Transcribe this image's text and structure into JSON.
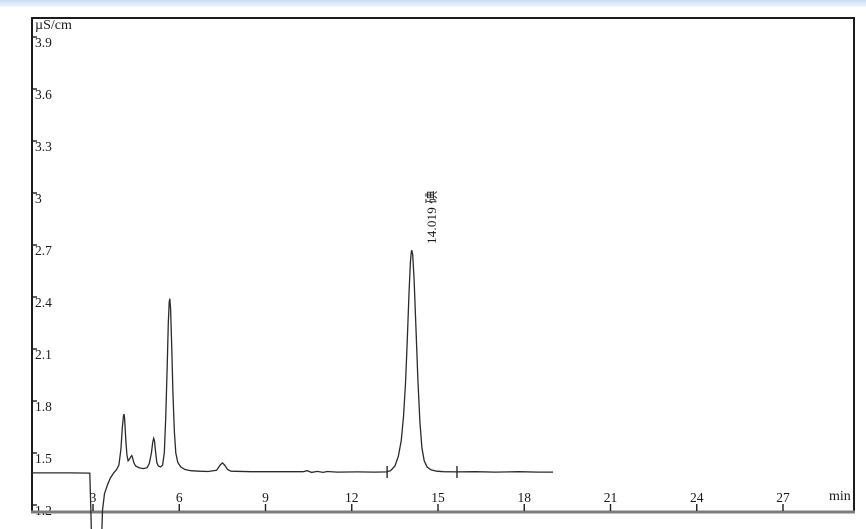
{
  "window": {
    "top_strip_color": "#cbdcf2"
  },
  "chart_data": {
    "type": "line",
    "title": "",
    "y_axis": {
      "unit_label": "µS/cm",
      "ticks": [
        "3.9",
        "3.6",
        "3.3",
        "3",
        "2.7",
        "2.4",
        "2.1",
        "1.8",
        "1.5",
        "1.2"
      ],
      "range": [
        1.16,
        4.03
      ],
      "grid": false
    },
    "x_axis": {
      "unit_label": "min",
      "ticks": [
        "3",
        "6",
        "9",
        "12",
        "15",
        "18",
        "21",
        "24",
        "27"
      ],
      "range": [
        0.84,
        29.6
      ],
      "grid": false
    },
    "trace_color": "#2b2b2b",
    "axis_color": "#7d7d7d",
    "legend": "none",
    "peaks": [
      {
        "rt_label": "14.019",
        "compound": "碘",
        "apex_t": 14.09,
        "apex_v": 2.67,
        "start_marker_t": 13.23,
        "end_marker_t": 15.66
      }
    ],
    "series": [
      {
        "name": "conductivity-trace",
        "points": [
          [
            0.84,
            1.385
          ],
          [
            1.5,
            1.385
          ],
          [
            2.2,
            1.385
          ],
          [
            2.89,
            1.384
          ],
          [
            2.92,
            1.2
          ],
          [
            2.95,
            1.0
          ],
          [
            3.3,
            1.0
          ],
          [
            3.33,
            1.17
          ],
          [
            3.4,
            1.265
          ],
          [
            3.5,
            1.315
          ],
          [
            3.6,
            1.355
          ],
          [
            3.72,
            1.385
          ],
          [
            3.82,
            1.405
          ],
          [
            3.9,
            1.43
          ],
          [
            3.97,
            1.52
          ],
          [
            4.02,
            1.645
          ],
          [
            4.06,
            1.715
          ],
          [
            4.08,
            1.725
          ],
          [
            4.1,
            1.7
          ],
          [
            4.14,
            1.575
          ],
          [
            4.18,
            1.49
          ],
          [
            4.22,
            1.455
          ],
          [
            4.27,
            1.465
          ],
          [
            4.32,
            1.48
          ],
          [
            4.35,
            1.485
          ],
          [
            4.38,
            1.47
          ],
          [
            4.42,
            1.445
          ],
          [
            4.48,
            1.425
          ],
          [
            4.6,
            1.415
          ],
          [
            4.75,
            1.41
          ],
          [
            4.88,
            1.415
          ],
          [
            4.96,
            1.44
          ],
          [
            5.03,
            1.5
          ],
          [
            5.08,
            1.565
          ],
          [
            5.11,
            1.585
          ],
          [
            5.14,
            1.57
          ],
          [
            5.18,
            1.5
          ],
          [
            5.22,
            1.445
          ],
          [
            5.27,
            1.425
          ],
          [
            5.35,
            1.42
          ],
          [
            5.42,
            1.43
          ],
          [
            5.48,
            1.5
          ],
          [
            5.53,
            1.7
          ],
          [
            5.58,
            2.0
          ],
          [
            5.62,
            2.25
          ],
          [
            5.65,
            2.37
          ],
          [
            5.67,
            2.39
          ],
          [
            5.7,
            2.33
          ],
          [
            5.74,
            2.1
          ],
          [
            5.78,
            1.85
          ],
          [
            5.83,
            1.62
          ],
          [
            5.88,
            1.5
          ],
          [
            5.95,
            1.445
          ],
          [
            6.05,
            1.42
          ],
          [
            6.2,
            1.405
          ],
          [
            6.4,
            1.398
          ],
          [
            6.7,
            1.395
          ],
          [
            7.0,
            1.393
          ],
          [
            7.3,
            1.4
          ],
          [
            7.42,
            1.43
          ],
          [
            7.5,
            1.443
          ],
          [
            7.58,
            1.43
          ],
          [
            7.68,
            1.405
          ],
          [
            7.8,
            1.395
          ],
          [
            8.5,
            1.392
          ],
          [
            9.5,
            1.392
          ],
          [
            10.3,
            1.392
          ],
          [
            10.45,
            1.398
          ],
          [
            10.6,
            1.388
          ],
          [
            10.8,
            1.394
          ],
          [
            11.0,
            1.388
          ],
          [
            11.15,
            1.393
          ],
          [
            11.5,
            1.39
          ],
          [
            12.2,
            1.391
          ],
          [
            12.8,
            1.39
          ],
          [
            13.2,
            1.391
          ],
          [
            13.35,
            1.398
          ],
          [
            13.5,
            1.425
          ],
          [
            13.62,
            1.48
          ],
          [
            13.72,
            1.57
          ],
          [
            13.8,
            1.71
          ],
          [
            13.87,
            1.9
          ],
          [
            13.93,
            2.14
          ],
          [
            13.99,
            2.42
          ],
          [
            14.04,
            2.6
          ],
          [
            14.07,
            2.66
          ],
          [
            14.09,
            2.67
          ],
          [
            14.12,
            2.645
          ],
          [
            14.17,
            2.5
          ],
          [
            14.23,
            2.23
          ],
          [
            14.3,
            1.92
          ],
          [
            14.37,
            1.68
          ],
          [
            14.44,
            1.53
          ],
          [
            14.52,
            1.455
          ],
          [
            14.62,
            1.42
          ],
          [
            14.75,
            1.403
          ],
          [
            14.95,
            1.395
          ],
          [
            15.2,
            1.392
          ],
          [
            15.66,
            1.391
          ],
          [
            16.3,
            1.392
          ],
          [
            17.0,
            1.39
          ],
          [
            17.8,
            1.392
          ],
          [
            18.5,
            1.39
          ],
          [
            19.0,
            1.39
          ]
        ]
      }
    ]
  }
}
